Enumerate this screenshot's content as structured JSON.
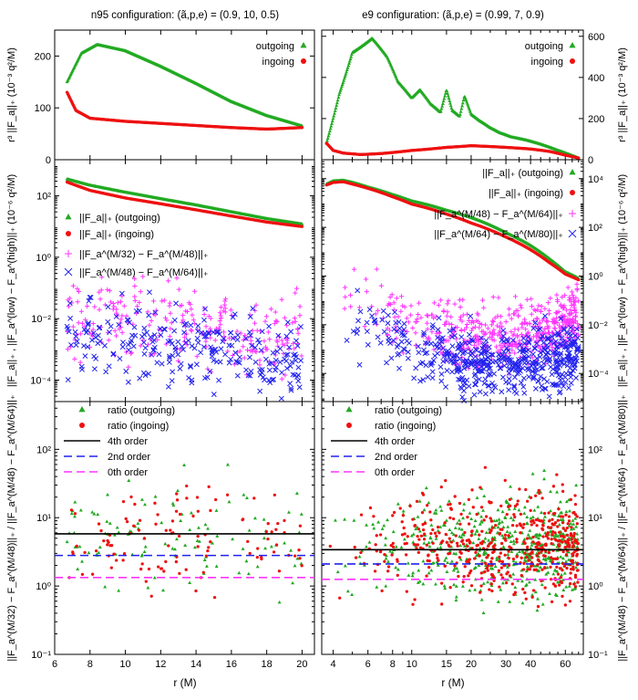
{
  "figure": {
    "left_title": "n95 configuration: (ã,p,e) = (0.9, 10, 0.5)",
    "right_title": "e9 configuration: (ã,p,e) = (0.99, 7, 0.9)",
    "xlabel": "r (M)"
  },
  "colors": {
    "green": "#22aa22",
    "red": "#ee1111",
    "magenta": "#ff33ff",
    "blue": "#2222ee",
    "black": "#000000"
  },
  "chart_data": [
    {
      "id": "top-left",
      "type": "scatter",
      "panel": "top",
      "side": "left",
      "xscale": "linear",
      "xlim": [
        6,
        20.7
      ],
      "yscale": "linear",
      "ylim": [
        0,
        250
      ],
      "yticks": [
        0,
        100,
        200
      ],
      "ylabel": "r³ ||F_a||₊ (10⁻³ q²/M)",
      "legend_position": "top-right",
      "series": [
        {
          "name": "outgoing",
          "color": "green",
          "marker": "triangle",
          "x": [
            6.7,
            7.5,
            8.4,
            10,
            12,
            14,
            16,
            18,
            20
          ],
          "y": [
            150,
            205,
            222,
            210,
            180,
            147,
            112,
            85,
            65
          ]
        },
        {
          "name": "ingoing",
          "color": "red",
          "marker": "circle",
          "x": [
            6.7,
            7.2,
            8,
            10,
            12,
            14,
            16,
            18,
            20
          ],
          "y": [
            130,
            95,
            80,
            74,
            70,
            66,
            62,
            59,
            62
          ]
        }
      ]
    },
    {
      "id": "top-right",
      "type": "scatter",
      "panel": "top",
      "side": "right",
      "xscale": "log",
      "xlim": [
        3.5,
        74
      ],
      "yscale": "linear",
      "ylim": [
        0,
        630
      ],
      "yticks": [
        0,
        200,
        400,
        600
      ],
      "ylabel": "r³ ||F_a||₊ (10⁻³ q²/M)",
      "legend_position": "top-right",
      "series": [
        {
          "name": "outgoing",
          "color": "green",
          "marker": "triangle",
          "x": [
            3.7,
            4.3,
            5,
            6.3,
            7.5,
            8.5,
            10,
            11,
            12.5,
            14,
            15,
            16,
            17.5,
            18.5,
            20,
            22,
            25,
            28,
            32,
            38,
            45,
            55,
            65,
            70
          ],
          "y": [
            80,
            320,
            520,
            590,
            500,
            380,
            300,
            340,
            270,
            230,
            340,
            240,
            210,
            310,
            220,
            190,
            155,
            130,
            110,
            95,
            75,
            45,
            20,
            8
          ]
        },
        {
          "name": "ingoing",
          "color": "red",
          "marker": "circle",
          "x": [
            3.7,
            4,
            4.5,
            5.5,
            7,
            10,
            15,
            20,
            30,
            40,
            50,
            60,
            70
          ],
          "y": [
            80,
            45,
            32,
            25,
            30,
            45,
            60,
            68,
            60,
            52,
            40,
            22,
            8
          ]
        }
      ]
    },
    {
      "id": "mid-left",
      "type": "scatter",
      "panel": "middle",
      "side": "left",
      "xscale": "linear",
      "xlim": [
        6,
        20.7
      ],
      "yscale": "log",
      "ylim": [
        2e-05,
        1500
      ],
      "yticks": [
        0.0001,
        0.01,
        1,
        100
      ],
      "ytick_labels": [
        "10⁻⁴",
        "10⁻²",
        "10⁰",
        "10²"
      ],
      "ylabel": "||F_a||₊ , ||F_a^(low) − F_a^(high)||₊ (10⁻⁶ q²/M)",
      "legend_position": "middle-left",
      "series": [
        {
          "name": "||F_a||₊ (outgoing)",
          "color": "green",
          "marker": "triangle",
          "x": [
            6.7,
            8,
            10,
            12,
            14,
            16,
            18,
            20
          ],
          "y": [
            350,
            220,
            130,
            80,
            50,
            30,
            18,
            12
          ]
        },
        {
          "name": "||F_a||₊ (ingoing)",
          "color": "red",
          "marker": "circle",
          "x": [
            6.7,
            8,
            10,
            12,
            14,
            16,
            18,
            20
          ],
          "y": [
            280,
            150,
            85,
            55,
            35,
            22,
            14,
            10
          ]
        },
        {
          "name": "||F_a^(M/32) − F_a^(M/48)||₊",
          "color": "magenta",
          "marker": "plus",
          "x": [
            6.7,
            20
          ],
          "y": [
            0.012,
            0.003
          ]
        },
        {
          "name": "||F_a^(M/48) − F_a^(M/64)||₊",
          "color": "blue",
          "marker": "cross",
          "x": [
            6.7,
            20
          ],
          "y": [
            0.0025,
            0.00045
          ]
        }
      ]
    },
    {
      "id": "mid-right",
      "type": "scatter",
      "panel": "middle",
      "side": "right",
      "xscale": "log",
      "xlim": [
        3.5,
        74
      ],
      "yscale": "log",
      "ylim": [
        7e-06,
        60000
      ],
      "yticks": [
        0.0001,
        0.01,
        1,
        100,
        10000
      ],
      "ytick_labels": [
        "10⁻⁴",
        "10⁻²",
        "10⁰",
        "10²",
        "10⁴"
      ],
      "ylabel": "||F_a||₊ , ||F_a^(low) − F_a^(high)||₊ (10⁻⁶ q²/M)",
      "legend_position": "top-right",
      "series": [
        {
          "name": "||F_a||₊ (outgoing)",
          "color": "green",
          "marker": "triangle",
          "x": [
            3.7,
            4,
            4.5,
            5,
            6,
            8,
            10,
            15,
            20,
            30,
            40,
            50,
            60,
            70
          ],
          "y": [
            6000,
            8000,
            8500,
            7000,
            4500,
            2200,
            1200,
            500,
            250,
            60,
            18,
            5,
            1.5,
            0.8
          ]
        },
        {
          "name": "||F_a||₊ (ingoing)",
          "color": "red",
          "marker": "circle",
          "x": [
            3.7,
            4,
            4.5,
            5,
            6,
            8,
            10,
            15,
            20,
            30,
            40,
            50,
            60,
            70
          ],
          "y": [
            5500,
            7000,
            7500,
            6000,
            4000,
            1800,
            900,
            350,
            150,
            40,
            12,
            3.5,
            1.2,
            0.7
          ]
        },
        {
          "name": "||F_a^(M/48) − F_a^(M/64)||₊",
          "color": "magenta",
          "marker": "plus",
          "x": [
            3.7,
            8,
            15,
            30,
            70
          ],
          "y": [
            0.3,
            0.02,
            0.004,
            0.003,
            0.03
          ]
        },
        {
          "name": "||F_a^(M/64) − F_a^(M/80)||₊",
          "color": "blue",
          "marker": "cross",
          "x": [
            3.7,
            8,
            15,
            30,
            70
          ],
          "y": [
            0.02,
            0.002,
            0.0003,
            0.00025,
            0.0006
          ]
        }
      ]
    },
    {
      "id": "bottom-left",
      "type": "scatter",
      "panel": "bottom",
      "side": "left",
      "xscale": "linear",
      "xlim": [
        6,
        20.7
      ],
      "yscale": "log",
      "ylim": [
        0.1,
        500
      ],
      "yticks": [
        0.1,
        1,
        10,
        100
      ],
      "ytick_labels": [
        "10⁻¹",
        "10⁰",
        "10¹",
        "10²"
      ],
      "xticks": [
        6,
        8,
        10,
        12,
        14,
        16,
        18,
        20
      ],
      "ylabel": "||F_a^(M/32) − F_a^(M/48)||₊ / ||F_a^(M/48) − F_a^(M/64)||₊",
      "legend_position": "top-left",
      "series": [
        {
          "name": "ratio (outgoing)",
          "color": "green",
          "marker": "triangle",
          "x": [
            6.7,
            20
          ],
          "y": [
            5,
            5
          ]
        },
        {
          "name": "ratio (ingoing)",
          "color": "red",
          "marker": "circle",
          "x": [
            6.7,
            20
          ],
          "y": [
            5,
            5
          ]
        },
        {
          "name": "4th order",
          "color": "black",
          "style": "solid",
          "y": 5.8
        },
        {
          "name": "2nd order",
          "color": "blue",
          "style": "dashed",
          "y": 2.8
        },
        {
          "name": "0th order",
          "color": "magenta",
          "style": "dashed",
          "y": 1.33
        }
      ]
    },
    {
      "id": "bottom-right",
      "type": "scatter",
      "panel": "bottom",
      "side": "right",
      "xscale": "log",
      "xlim": [
        3.5,
        74
      ],
      "yscale": "log",
      "ylim": [
        0.1,
        500
      ],
      "yticks": [
        0.1,
        1,
        10,
        100
      ],
      "ytick_labels": [
        "10⁻¹",
        "10⁰",
        "10¹",
        "10²"
      ],
      "xticks": [
        4,
        6,
        8,
        10,
        15,
        20,
        30,
        40,
        60
      ],
      "ylabel": "||F_a^(M/48) − F_a^(M/64)||₊ / ||F_a^(M/64) − F_a^(M/80)||₊",
      "legend_position": "top-left",
      "series": [
        {
          "name": "ratio (outgoing)",
          "color": "green",
          "marker": "triangle",
          "x": [
            3.7,
            70
          ],
          "y": [
            4,
            4
          ]
        },
        {
          "name": "ratio (ingoing)",
          "color": "red",
          "marker": "circle",
          "x": [
            3.7,
            70
          ],
          "y": [
            4,
            4
          ]
        },
        {
          "name": "4th order",
          "color": "black",
          "style": "solid",
          "y": 3.4
        },
        {
          "name": "2nd order",
          "color": "blue",
          "style": "dashed",
          "y": 2.1
        },
        {
          "name": "0th order",
          "color": "magenta",
          "style": "dashed",
          "y": 1.25
        }
      ]
    }
  ]
}
